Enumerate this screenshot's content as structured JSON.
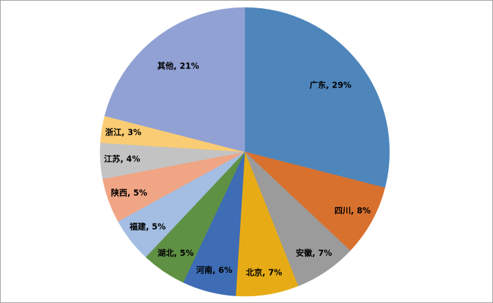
{
  "chart_data": {
    "type": "pie",
    "title": "",
    "legend": "none",
    "data_labels": "inside",
    "label_format": "{name}, {value}%",
    "start_angle_deg": 0,
    "direction": "clockwise",
    "categories": [
      "广东",
      "四川",
      "安徽",
      "北京",
      "河南",
      "湖北",
      "福建",
      "陕西",
      "江苏",
      "浙江",
      "其他"
    ],
    "values": [
      29,
      8,
      7,
      7,
      6,
      5,
      5,
      5,
      4,
      3,
      21
    ],
    "unit": "%",
    "slices": [
      {
        "name": "广东",
        "value": 29,
        "label": "广东, 29%",
        "color": "#4E86BC"
      },
      {
        "name": "四川",
        "value": 8,
        "label": "四川, 8%",
        "color": "#D9712E"
      },
      {
        "name": "安徽",
        "value": 7,
        "label": "安徽, 7%",
        "color": "#9B9B9B"
      },
      {
        "name": "北京",
        "value": 7,
        "label": "北京, 7%",
        "color": "#E7AC15"
      },
      {
        "name": "河南",
        "value": 6,
        "label": "河南, 6%",
        "color": "#3E6CB5"
      },
      {
        "name": "湖北",
        "value": 5,
        "label": "湖北, 5%",
        "color": "#5F9144"
      },
      {
        "name": "福建",
        "value": 5,
        "label": "福建, 5%",
        "color": "#A3BEE2"
      },
      {
        "name": "陕西",
        "value": 5,
        "label": "陕西, 5%",
        "color": "#F0A584"
      },
      {
        "name": "江苏",
        "value": 4,
        "label": "江苏, 4%",
        "color": "#C3C3C3"
      },
      {
        "name": "浙江",
        "value": 3,
        "label": "浙江, 3%",
        "color": "#FACC74"
      },
      {
        "name": "其他",
        "value": 21,
        "label": "其他, 21%",
        "color": "#91A1D4"
      }
    ],
    "label_color": "#000000",
    "background_color": "#FFFFFF",
    "frame_border_color": "#9E9E9E"
  }
}
